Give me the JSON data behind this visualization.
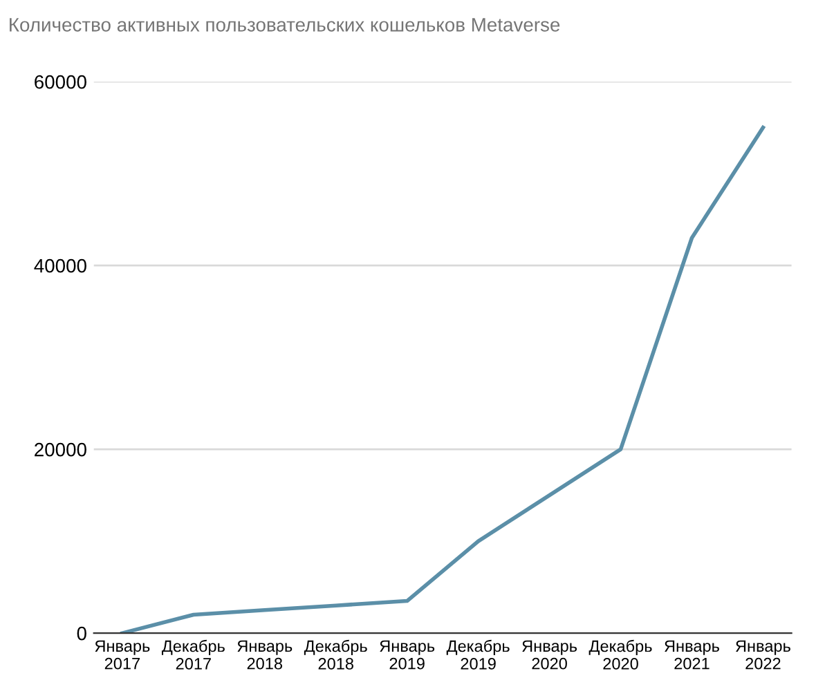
{
  "chart_data": {
    "type": "line",
    "title": "Количество активных пользовательских кошельков Metaverse",
    "categories": [
      "Январь\n2017",
      "Декабрь\n2017",
      "Январь\n2018",
      "Декабрь\n2018",
      "Январь\n2019",
      "Декабрь\n2019",
      "Январь\n2020",
      "Декабрь\n2020",
      "Январь\n2021",
      "Январь\n2022"
    ],
    "series": [
      {
        "color": "#5b8fa8",
        "values": [
          0,
          2000,
          2500,
          3000,
          3500,
          10000,
          15000,
          20000,
          43000,
          55000
        ]
      }
    ],
    "ylim": [
      0,
      60000
    ],
    "yticks": [
      0,
      20000,
      40000,
      60000
    ],
    "grid": "y",
    "marker": "none",
    "line_style": "solid"
  }
}
